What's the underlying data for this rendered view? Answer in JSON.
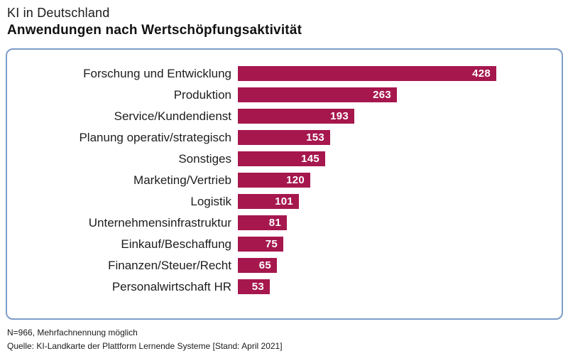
{
  "header": {
    "title_line1": "KI in Deutschland",
    "title_line2": "Anwendungen nach Wertschöpfungsaktivität"
  },
  "chart_data": {
    "type": "bar",
    "orientation": "horizontal",
    "title": "KI in Deutschland – Anwendungen nach Wertschöpfungsaktivität",
    "categories": [
      "Forschung und Entwicklung",
      "Produktion",
      "Service/Kundendienst",
      "Planung operativ/strategisch",
      "Sonstiges",
      "Marketing/Vertrieb",
      "Logistik",
      "Unternehmensinfrastruktur",
      "Einkauf/Beschaffung",
      "Finanzen/Steuer/Recht",
      "Personalwirtschaft HR"
    ],
    "values": [
      428,
      263,
      193,
      153,
      145,
      120,
      101,
      81,
      75,
      65,
      53
    ],
    "value_labels_inside_bars": true,
    "bar_color": "#a6174e",
    "value_label_color": "#ffffff",
    "frame_border_color": "#7e9dc9",
    "xlim": [
      0,
      428
    ],
    "grid": false,
    "legend": false
  },
  "footer": {
    "note": "N=966, Mehrfachnennung möglich",
    "source": "Quelle: KI-Landkarte der Plattform Lernende Systeme [Stand: April 2021]"
  }
}
